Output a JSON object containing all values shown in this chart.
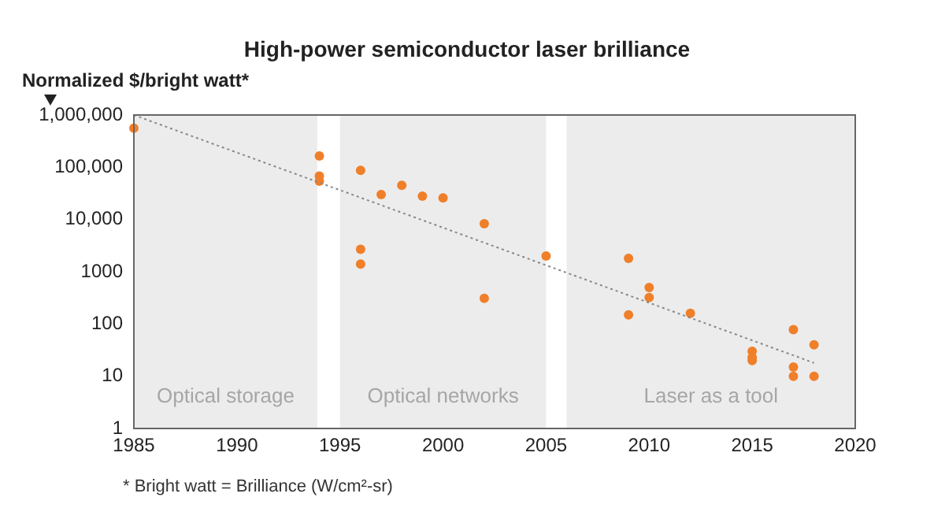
{
  "chart_data": {
    "type": "scatter",
    "title": "High-power semiconductor laser brilliance",
    "ylabel": "Normalized $/bright watt*",
    "annotations": [
      "* Bright watt = Brilliance (W/cm²-sr)"
    ],
    "log": "y",
    "grid": false,
    "legend": false,
    "marker": "circle",
    "xlim": [
      1985,
      2020
    ],
    "xticks": [
      1985,
      1990,
      1995,
      2000,
      2005,
      2010,
      2015,
      2020
    ],
    "ylim": [
      1,
      1000000
    ],
    "yticks": [
      {
        "value": 1000000,
        "label": "1,000,000"
      },
      {
        "value": 100000,
        "label": "100,000"
      },
      {
        "value": 10000,
        "label": "10,000"
      },
      1000,
      100,
      10,
      1
    ],
    "bands": [
      {
        "axis": "x",
        "from": 1985,
        "to": 1993.9,
        "label": "Optical storage",
        "color": "#ececec"
      },
      {
        "axis": "x",
        "from": 1995,
        "to": 2005,
        "label": "Optical networks",
        "color": "#ececec"
      },
      {
        "axis": "x",
        "from": 2006,
        "to": 2020,
        "label": "Laser as a tool",
        "color": "#ececec"
      }
    ],
    "series": [
      {
        "color": "#f07f2a",
        "x": [
          1985,
          1994,
          1994,
          1994,
          1996,
          1996,
          1996,
          1997,
          1998,
          1999,
          2000,
          2002,
          2002,
          2005,
          2009,
          2009,
          2010,
          2010,
          2012,
          2015,
          2015,
          2015,
          2017,
          2017,
          2017,
          2018,
          2018
        ],
        "values": [
          560000,
          165000,
          68000,
          54000,
          87000,
          2700,
          1400,
          30000,
          45000,
          28000,
          26000,
          8300,
          310,
          2000,
          1800,
          150,
          500,
          320,
          160,
          30,
          23,
          20,
          78,
          15,
          10,
          40,
          10
        ]
      },
      {
        "type": "line",
        "color": "#888888",
        "line_style": "dotted",
        "marker": "none",
        "x": [
          1985,
          2018
        ],
        "values": [
          1000000,
          18
        ]
      }
    ]
  }
}
